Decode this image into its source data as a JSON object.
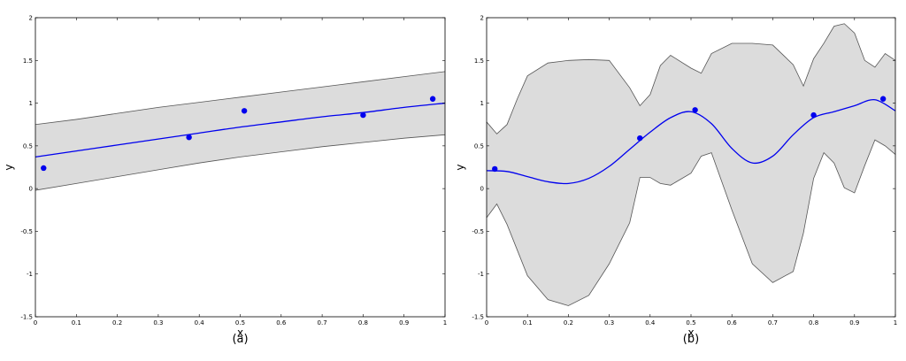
{
  "chart_data": [
    {
      "type": "line",
      "panel_label": "(a)",
      "xlabel": "x",
      "ylabel": "y",
      "xlim": [
        0,
        1
      ],
      "ylim": [
        -1.5,
        2
      ],
      "xticks": [
        0,
        0.1,
        0.2,
        0.3,
        0.4,
        0.5,
        0.6,
        0.7,
        0.8,
        0.9,
        1
      ],
      "xtick_labels": [
        "0",
        "0.1",
        "0.2",
        "0.3",
        "0.4",
        "0.5",
        "0.6",
        "0.7",
        "0.8",
        "0.9",
        "1"
      ],
      "yticks": [
        -1.5,
        -1,
        -0.5,
        0,
        0.5,
        1,
        1.5,
        2
      ],
      "ytick_labels": [
        "-1.5",
        "-1",
        "-0.5",
        "0",
        "0.5",
        "1",
        "1.5",
        "2"
      ],
      "grid": false,
      "colors": {
        "mean": "#0000ee",
        "points": "#0000ee",
        "band_fill": "#dcdcdc",
        "band_edge": "#555555"
      },
      "points": {
        "x": [
          0.02,
          0.375,
          0.51,
          0.8,
          0.97
        ],
        "y": [
          0.24,
          0.6,
          0.91,
          0.86,
          1.05
        ]
      },
      "mean": {
        "x": [
          0,
          0.1,
          0.2,
          0.3,
          0.4,
          0.5,
          0.6,
          0.7,
          0.8,
          0.9,
          1.0
        ],
        "y": [
          0.37,
          0.44,
          0.51,
          0.58,
          0.65,
          0.72,
          0.78,
          0.84,
          0.89,
          0.95,
          1.0
        ]
      },
      "band": {
        "x": [
          0,
          0.1,
          0.2,
          0.3,
          0.4,
          0.5,
          0.6,
          0.7,
          0.8,
          0.9,
          1.0
        ],
        "upper": [
          0.75,
          0.81,
          0.88,
          0.95,
          1.01,
          1.07,
          1.13,
          1.19,
          1.25,
          1.31,
          1.37
        ],
        "lower": [
          -0.02,
          0.06,
          0.14,
          0.22,
          0.3,
          0.37,
          0.43,
          0.49,
          0.54,
          0.59,
          0.63
        ]
      }
    },
    {
      "type": "line",
      "panel_label": "(b)",
      "xlabel": "x",
      "ylabel": "y",
      "xlim": [
        0,
        1
      ],
      "ylim": [
        -1.5,
        2
      ],
      "xticks": [
        0,
        0.1,
        0.2,
        0.3,
        0.4,
        0.5,
        0.6,
        0.7,
        0.8,
        0.9,
        1
      ],
      "xtick_labels": [
        "0",
        "0.1",
        "0.2",
        "0.3",
        "0.4",
        "0.5",
        "0.6",
        "0.7",
        "0.8",
        "0.9",
        "1"
      ],
      "yticks": [
        -1.5,
        -1,
        -0.5,
        0,
        0.5,
        1,
        1.5,
        2
      ],
      "ytick_labels": [
        "-1.5",
        "-1",
        "-0.5",
        "0",
        "0.5",
        "1",
        "1.5",
        "2"
      ],
      "grid": false,
      "colors": {
        "mean": "#0000ee",
        "points": "#0000ee",
        "band_fill": "#dcdcdc",
        "band_edge": "#555555"
      },
      "points": {
        "x": [
          0.02,
          0.375,
          0.51,
          0.8,
          0.97
        ],
        "y": [
          0.23,
          0.59,
          0.92,
          0.86,
          1.05
        ]
      },
      "mean": {
        "x": [
          0,
          0.05,
          0.1,
          0.15,
          0.2,
          0.25,
          0.3,
          0.35,
          0.4,
          0.45,
          0.5,
          0.55,
          0.6,
          0.65,
          0.7,
          0.75,
          0.8,
          0.85,
          0.9,
          0.95,
          1.0
        ],
        "y": [
          0.21,
          0.2,
          0.14,
          0.08,
          0.06,
          0.12,
          0.26,
          0.46,
          0.66,
          0.83,
          0.9,
          0.76,
          0.47,
          0.3,
          0.38,
          0.63,
          0.83,
          0.9,
          0.97,
          1.04,
          0.91
        ]
      },
      "band": {
        "x": [
          0,
          0.025,
          0.05,
          0.075,
          0.1,
          0.15,
          0.2,
          0.25,
          0.3,
          0.35,
          0.375,
          0.4,
          0.425,
          0.45,
          0.5,
          0.525,
          0.55,
          0.6,
          0.65,
          0.7,
          0.75,
          0.775,
          0.8,
          0.825,
          0.85,
          0.875,
          0.9,
          0.925,
          0.95,
          0.975,
          1.0
        ],
        "upper": [
          0.78,
          0.64,
          0.75,
          1.05,
          1.32,
          1.47,
          1.5,
          1.51,
          1.5,
          1.18,
          0.97,
          1.1,
          1.44,
          1.56,
          1.41,
          1.35,
          1.58,
          1.7,
          1.7,
          1.68,
          1.45,
          1.2,
          1.52,
          1.7,
          1.9,
          1.93,
          1.82,
          1.5,
          1.42,
          1.58,
          1.5
        ],
        "lower": [
          -0.34,
          -0.18,
          -0.42,
          -0.72,
          -1.02,
          -1.3,
          -1.37,
          -1.25,
          -0.88,
          -0.4,
          0.13,
          0.13,
          0.06,
          0.04,
          0.18,
          0.38,
          0.42,
          -0.25,
          -0.88,
          -1.1,
          -0.97,
          -0.52,
          0.12,
          0.42,
          0.3,
          0.01,
          -0.05,
          0.27,
          0.57,
          0.5,
          0.4
        ]
      }
    }
  ]
}
